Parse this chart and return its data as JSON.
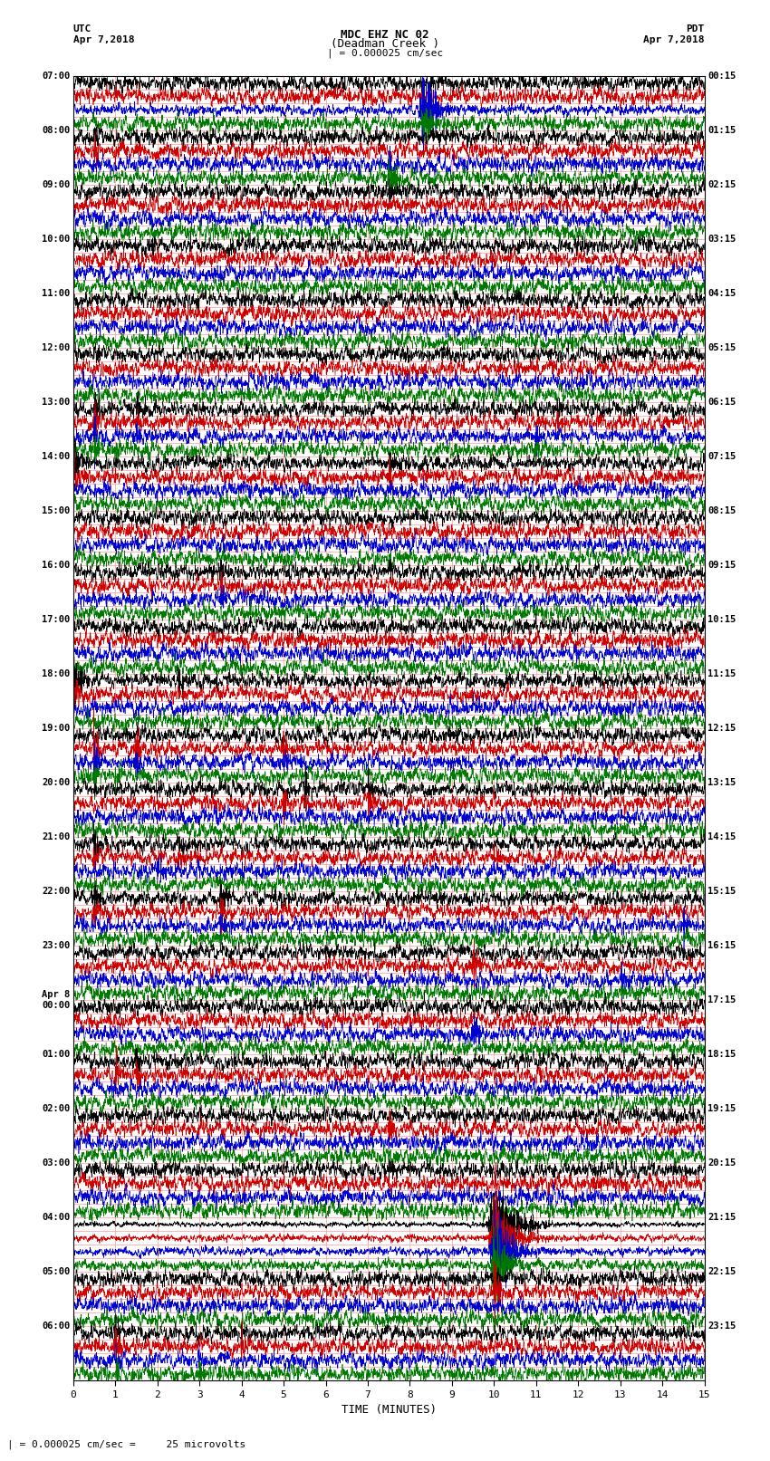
{
  "title_line1": "MDC EHZ NC 02",
  "title_line2": "(Deadman Creek )",
  "title_line3": "| = 0.000025 cm/sec",
  "utc_label": "UTC",
  "utc_date": "Apr 7,2018",
  "pdt_label": "PDT",
  "pdt_date": "Apr 7,2018",
  "xlabel": "TIME (MINUTES)",
  "footnote": "| = 0.000025 cm/sec =     25 microvolts",
  "bg_color": "#ffffff",
  "trace_colors": [
    "#000000",
    "#cc0000",
    "#0000cc",
    "#007700"
  ],
  "hline_color": "#ff9999",
  "vline_color": "#ff9999",
  "xlim": [
    0,
    15
  ],
  "xticks": [
    0,
    1,
    2,
    3,
    4,
    5,
    6,
    7,
    8,
    9,
    10,
    11,
    12,
    13,
    14,
    15
  ],
  "left_labels": [
    "07:00",
    "",
    "",
    "",
    "08:00",
    "",
    "",
    "",
    "09:00",
    "",
    "",
    "",
    "10:00",
    "",
    "",
    "",
    "11:00",
    "",
    "",
    "",
    "12:00",
    "",
    "",
    "",
    "13:00",
    "",
    "",
    "",
    "14:00",
    "",
    "",
    "",
    "15:00",
    "",
    "",
    "",
    "16:00",
    "",
    "",
    "",
    "17:00",
    "",
    "",
    "",
    "18:00",
    "",
    "",
    "",
    "19:00",
    "",
    "",
    "",
    "20:00",
    "",
    "",
    "",
    "21:00",
    "",
    "",
    "",
    "22:00",
    "",
    "",
    "",
    "23:00",
    "",
    "",
    "",
    "Apr 8\n00:00",
    "",
    "",
    "",
    "01:00",
    "",
    "",
    "",
    "02:00",
    "",
    "",
    "",
    "03:00",
    "",
    "",
    "",
    "04:00",
    "",
    "",
    "",
    "05:00",
    "",
    "",
    "",
    "06:00",
    "",
    "",
    ""
  ],
  "right_labels": [
    "00:15",
    "",
    "",
    "",
    "01:15",
    "",
    "",
    "",
    "02:15",
    "",
    "",
    "",
    "03:15",
    "",
    "",
    "",
    "04:15",
    "",
    "",
    "",
    "05:15",
    "",
    "",
    "",
    "06:15",
    "",
    "",
    "",
    "07:15",
    "",
    "",
    "",
    "08:15",
    "",
    "",
    "",
    "09:15",
    "",
    "",
    "",
    "10:15",
    "",
    "",
    "",
    "11:15",
    "",
    "",
    "",
    "12:15",
    "",
    "",
    "",
    "13:15",
    "",
    "",
    "",
    "14:15",
    "",
    "",
    "",
    "15:15",
    "",
    "",
    "",
    "16:15",
    "",
    "",
    "",
    "17:15",
    "",
    "",
    "",
    "18:15",
    "",
    "",
    "",
    "19:15",
    "",
    "",
    "",
    "20:15",
    "",
    "",
    "",
    "21:15",
    "",
    "",
    "",
    "22:15",
    "",
    "",
    "",
    "23:15",
    "",
    "",
    ""
  ],
  "num_rows": 96,
  "noise_seed": 42,
  "figsize": [
    8.5,
    16.13
  ],
  "dpi": 100
}
